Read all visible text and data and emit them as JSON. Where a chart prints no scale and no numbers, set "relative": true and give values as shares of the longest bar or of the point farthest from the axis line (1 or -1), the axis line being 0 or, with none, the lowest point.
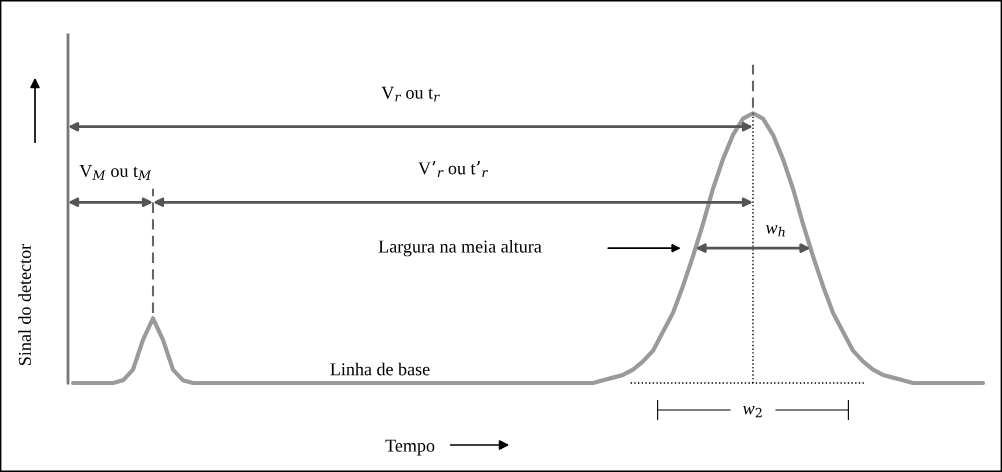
{
  "chart_data": {
    "type": "line",
    "relative": true,
    "color": "#9a9a9a",
    "ylabel": "Sinal do detector",
    "xlabel": "Tempo",
    "annotations": [
      "V$_{r}$ ou t$_{r}$",
      "V$_{M}$ ou t$_{M}$",
      "V’$_{r}$ ou t’$_{r}$",
      "Largura na meia altura",
      "w$_{h}$",
      "Linha de base",
      "w$_{2}$"
    ],
    "categories": [
      null,
      null,
      null,
      null,
      null,
      null,
      null,
      null,
      null,
      null,
      null,
      null,
      null,
      null,
      null,
      null,
      null,
      null,
      null,
      null,
      null,
      null,
      null,
      null,
      null,
      null,
      null,
      null,
      null,
      null,
      null,
      null,
      null,
      null,
      null,
      null,
      null,
      null,
      null,
      null,
      null,
      null,
      null,
      null,
      null,
      null,
      null,
      null,
      null,
      null,
      null,
      null,
      null,
      null,
      null,
      null,
      null,
      null,
      null,
      null,
      null,
      null,
      null,
      null,
      null,
      null,
      null,
      null,
      null,
      null,
      null,
      null,
      null,
      null,
      null,
      null,
      null,
      null,
      null,
      null,
      null,
      null,
      null,
      null,
      null,
      null,
      null,
      null,
      null,
      null,
      null,
      null
    ],
    "values": [
      0,
      0,
      0,
      0,
      0,
      0.01,
      0.05,
      0.16,
      0.24,
      0.16,
      0.05,
      0.01,
      0,
      0,
      0,
      0,
      0,
      0,
      0,
      0,
      0,
      0,
      0,
      0,
      0,
      0,
      0,
      0,
      0,
      0,
      0,
      0,
      0,
      0,
      0,
      0,
      0,
      0,
      0,
      0,
      0,
      0,
      0,
      0,
      0,
      0,
      0,
      0,
      0,
      0,
      0,
      0,
      0,
      0.01,
      0.02,
      0.03,
      0.05,
      0.08,
      0.12,
      0.19,
      0.26,
      0.36,
      0.47,
      0.59,
      0.72,
      0.83,
      0.92,
      0.98,
      1,
      0.98,
      0.92,
      0.83,
      0.72,
      0.59,
      0.47,
      0.36,
      0.26,
      0.19,
      0.12,
      0.08,
      0.05,
      0.03,
      0.02,
      0.01,
      0,
      0,
      0,
      0,
      0,
      0,
      0,
      0
    ]
  }
}
